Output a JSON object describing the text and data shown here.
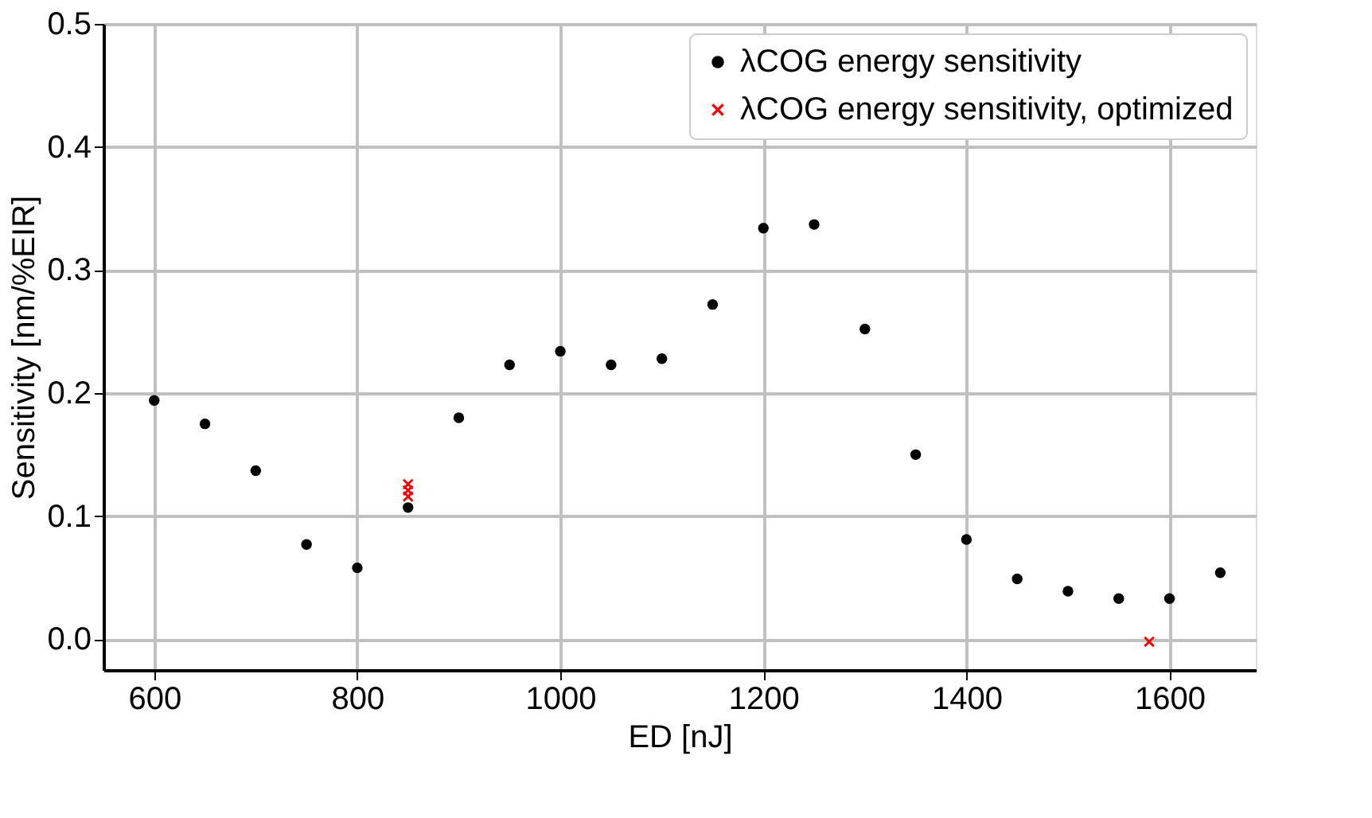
{
  "chart_data": {
    "type": "scatter",
    "xlabel": "ED [nJ]",
    "ylabel": "Sensitivity [nm/%EIR]",
    "xlim": [
      550,
      1685
    ],
    "xticks": [
      600,
      800,
      {
        "value": 1000,
        "label": "1000"
      },
      {
        "value": 1200,
        "label": "1200"
      },
      {
        "value": 1400,
        "label": "1400"
      },
      {
        "value": 1600,
        "label": "1600"
      }
    ],
    "ylim": [
      -0.025,
      0.5
    ],
    "yticks": [
      {
        "value": 0,
        "label": "0.0"
      },
      0.1,
      0.2,
      0.3,
      0.4,
      0.5
    ],
    "grid": true,
    "legend": "top right",
    "series": [
      {
        "name": "λCOG energy sensitivity",
        "color": "#000000",
        "marker": "circle",
        "x": [
          600,
          650,
          700,
          750,
          800,
          850,
          900,
          950,
          1000,
          1050,
          1100,
          1150,
          1200,
          1250,
          1300,
          1350,
          1400,
          1450,
          1500,
          1550,
          1600,
          1650
        ],
        "values": [
          0.194,
          0.175,
          0.137,
          0.077,
          0.058,
          0.107,
          0.18,
          0.223,
          0.234,
          0.223,
          0.228,
          0.272,
          0.334,
          0.337,
          0.252,
          0.15,
          0.081,
          0.049,
          0.039,
          0.033,
          0.033,
          0.054
        ]
      },
      {
        "name": "λCOG energy sensitivity, optimized",
        "color": "#ff0000",
        "marker": "cross",
        "x": [
          850,
          850,
          850,
          1580
        ],
        "values": [
          0.126,
          0.121,
          0.116,
          -0.002
        ]
      }
    ]
  }
}
